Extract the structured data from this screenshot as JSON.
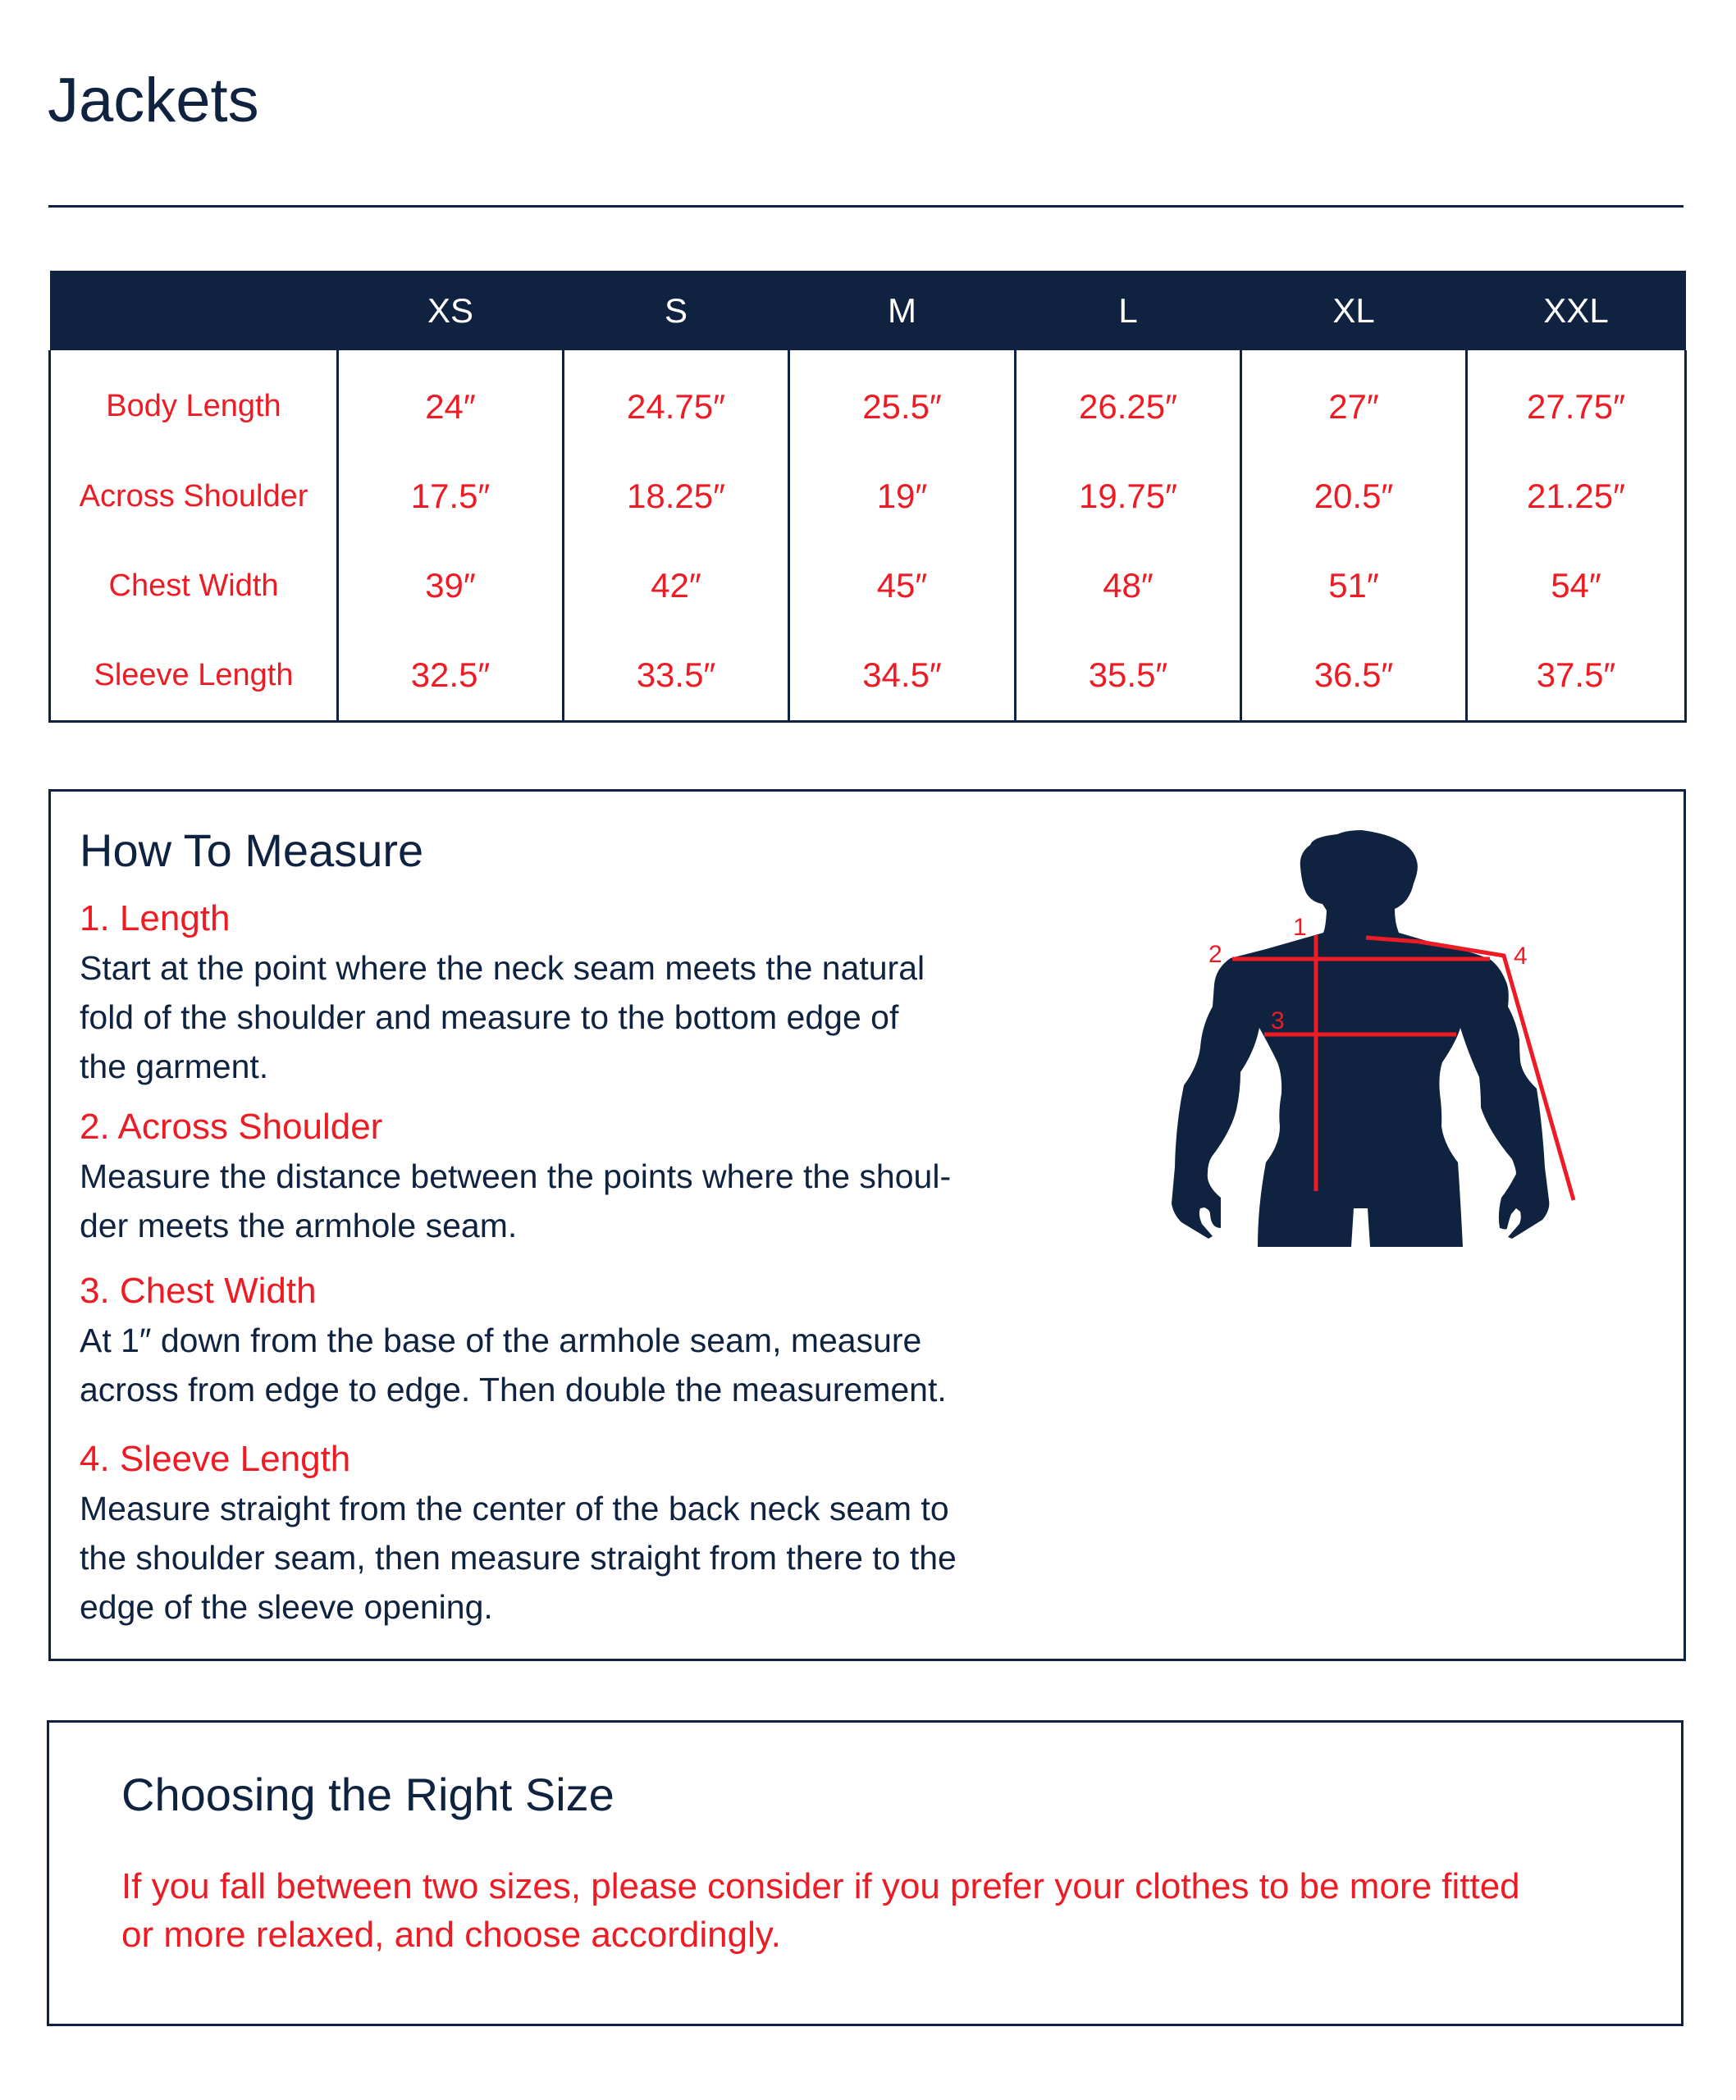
{
  "title": "Jackets",
  "size_table": {
    "headers": [
      "",
      "XS",
      "S",
      "M",
      "L",
      "XL",
      "XXL"
    ],
    "rows": [
      {
        "label": "Body Length",
        "values": [
          "24″",
          "24.75″",
          "25.5″",
          "26.25″",
          "27″",
          "27.75″"
        ]
      },
      {
        "label": "Across Shoulder",
        "values": [
          "17.5″",
          "18.25″",
          "19″",
          "19.75″",
          "20.5″",
          "21.25″"
        ]
      },
      {
        "label": "Chest Width",
        "values": [
          "39″",
          "42″",
          "45″",
          "48″",
          "51″",
          "54″"
        ]
      },
      {
        "label": "Sleeve Length",
        "values": [
          "32.5″",
          "33.5″",
          "34.5″",
          "35.5″",
          "36.5″",
          "37.5″"
        ]
      }
    ]
  },
  "how_to_measure": {
    "heading": "How To Measure",
    "steps": [
      {
        "title": "1. Length",
        "lines": [
          "Start at the point where the neck seam meets the natural",
          "fold of the shoulder and measure to the bottom edge of",
          "the garment."
        ]
      },
      {
        "title": "2. Across Shoulder",
        "lines": [
          "Measure the distance between the points where the shoul-",
          "der meets the armhole seam."
        ]
      },
      {
        "title": "3. Chest Width",
        "lines": [
          "At 1″ down from the base of the armhole seam, measure",
          "across from edge to edge. Then double the measurement."
        ]
      },
      {
        "title": "4. Sleeve Length",
        "lines": [
          "Measure straight from the center of the back neck seam to",
          "the shoulder seam, then measure straight from there to the",
          "edge of the sleeve opening."
        ]
      }
    ],
    "figure_labels": [
      "1",
      "2",
      "3",
      "4"
    ]
  },
  "choosing": {
    "heading": "Choosing the Right Size",
    "lines": [
      "If you fall between two sizes, please consider if you prefer your clothes to be more fitted",
      "or more relaxed, and choose accordingly."
    ]
  },
  "colors": {
    "navy": "#0f2340",
    "red": "#ed1c24"
  }
}
